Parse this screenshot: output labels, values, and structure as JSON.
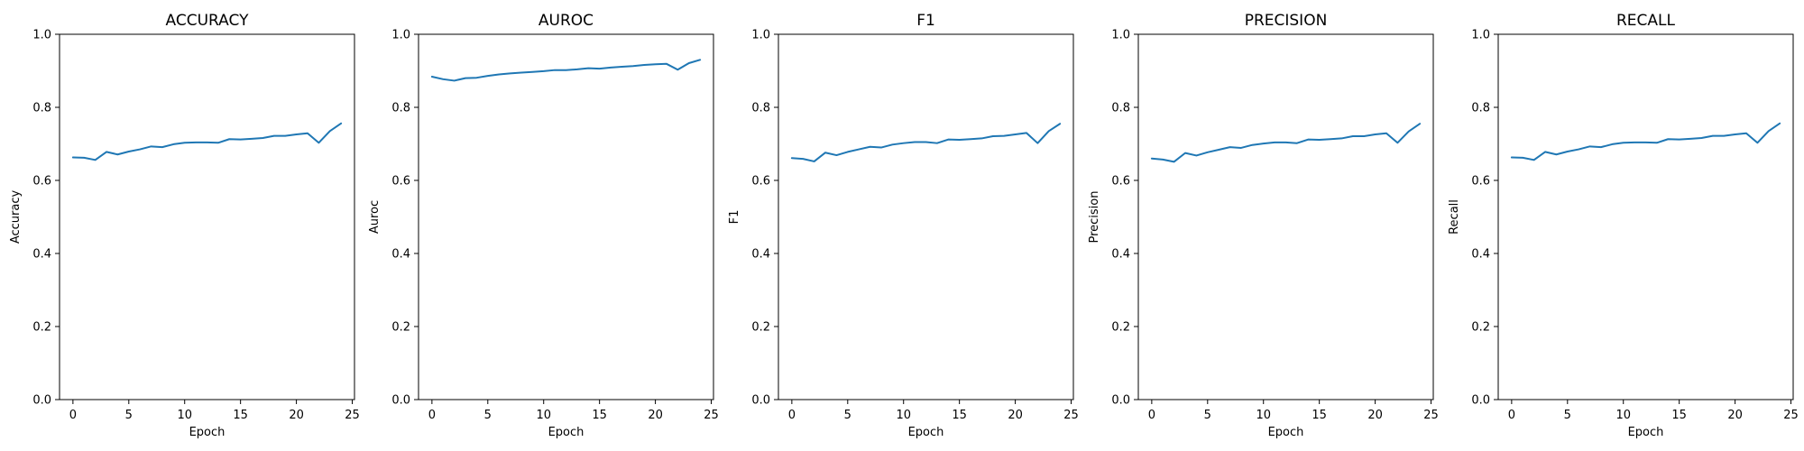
{
  "chart_data": [
    {
      "type": "line",
      "title": "ACCURACY",
      "xlabel": "Epoch",
      "ylabel": "Accuracy",
      "xlim": [
        -1.2,
        25.2
      ],
      "ylim": [
        0,
        1
      ],
      "x_ticks": [
        0,
        5,
        10,
        15,
        20,
        25
      ],
      "y_ticks": [
        "0.0",
        "0.2",
        "0.4",
        "0.6",
        "0.8",
        "1.0"
      ],
      "x": [
        0,
        1,
        2,
        3,
        4,
        5,
        6,
        7,
        8,
        9,
        10,
        11,
        12,
        13,
        14,
        15,
        16,
        17,
        18,
        19,
        20,
        21,
        22,
        23,
        24
      ],
      "series": [
        {
          "color": "#1f77b4",
          "values": [
            0.663,
            0.662,
            0.656,
            0.678,
            0.671,
            0.679,
            0.685,
            0.693,
            0.691,
            0.699,
            0.703,
            0.704,
            0.704,
            0.703,
            0.713,
            0.712,
            0.714,
            0.716,
            0.722,
            0.722,
            0.726,
            0.729,
            0.703,
            0.735,
            0.756
          ]
        }
      ],
      "grid": false
    },
    {
      "type": "line",
      "title": "AUROC",
      "xlabel": "Epoch",
      "ylabel": "Auroc",
      "xlim": [
        -1.2,
        25.2
      ],
      "ylim": [
        0,
        1
      ],
      "x_ticks": [
        0,
        5,
        10,
        15,
        20,
        25
      ],
      "y_ticks": [
        "0.0",
        "0.2",
        "0.4",
        "0.6",
        "0.8",
        "1.0"
      ],
      "x": [
        0,
        1,
        2,
        3,
        4,
        5,
        6,
        7,
        8,
        9,
        10,
        11,
        12,
        13,
        14,
        15,
        16,
        17,
        18,
        19,
        20,
        21,
        22,
        23,
        24
      ],
      "series": [
        {
          "color": "#1f77b4",
          "values": [
            0.884,
            0.877,
            0.873,
            0.88,
            0.881,
            0.886,
            0.89,
            0.893,
            0.895,
            0.897,
            0.899,
            0.902,
            0.902,
            0.904,
            0.907,
            0.906,
            0.909,
            0.911,
            0.913,
            0.916,
            0.918,
            0.919,
            0.903,
            0.921,
            0.93
          ]
        }
      ],
      "grid": false
    },
    {
      "type": "line",
      "title": "F1",
      "xlabel": "Epoch",
      "ylabel": "F1",
      "xlim": [
        -1.2,
        25.2
      ],
      "ylim": [
        0,
        1
      ],
      "x_ticks": [
        0,
        5,
        10,
        15,
        20,
        25
      ],
      "y_ticks": [
        "0.0",
        "0.2",
        "0.4",
        "0.6",
        "0.8",
        "1.0"
      ],
      "x": [
        0,
        1,
        2,
        3,
        4,
        5,
        6,
        7,
        8,
        9,
        10,
        11,
        12,
        13,
        14,
        15,
        16,
        17,
        18,
        19,
        20,
        21,
        22,
        23,
        24
      ],
      "series": [
        {
          "color": "#1f77b4",
          "values": [
            0.661,
            0.659,
            0.652,
            0.676,
            0.669,
            0.678,
            0.685,
            0.692,
            0.69,
            0.698,
            0.702,
            0.705,
            0.705,
            0.702,
            0.712,
            0.711,
            0.713,
            0.715,
            0.721,
            0.722,
            0.726,
            0.73,
            0.702,
            0.735,
            0.755
          ]
        }
      ],
      "grid": false
    },
    {
      "type": "line",
      "title": "PRECISION",
      "xlabel": "Epoch",
      "ylabel": "Precision",
      "xlim": [
        -1.2,
        25.2
      ],
      "ylim": [
        0,
        1
      ],
      "x_ticks": [
        0,
        5,
        10,
        15,
        20,
        25
      ],
      "y_ticks": [
        "0.0",
        "0.2",
        "0.4",
        "0.6",
        "0.8",
        "1.0"
      ],
      "x": [
        0,
        1,
        2,
        3,
        4,
        5,
        6,
        7,
        8,
        9,
        10,
        11,
        12,
        13,
        14,
        15,
        16,
        17,
        18,
        19,
        20,
        21,
        22,
        23,
        24
      ],
      "series": [
        {
          "color": "#1f77b4",
          "values": [
            0.66,
            0.657,
            0.651,
            0.675,
            0.668,
            0.677,
            0.684,
            0.691,
            0.689,
            0.697,
            0.701,
            0.704,
            0.704,
            0.702,
            0.712,
            0.711,
            0.713,
            0.715,
            0.721,
            0.721,
            0.726,
            0.729,
            0.703,
            0.734,
            0.755
          ]
        }
      ],
      "grid": false
    },
    {
      "type": "line",
      "title": "RECALL",
      "xlabel": "Epoch",
      "ylabel": "Recall",
      "xlim": [
        -1.2,
        25.2
      ],
      "ylim": [
        0,
        1
      ],
      "x_ticks": [
        0,
        5,
        10,
        15,
        20,
        25
      ],
      "y_ticks": [
        "0.0",
        "0.2",
        "0.4",
        "0.6",
        "0.8",
        "1.0"
      ],
      "x": [
        0,
        1,
        2,
        3,
        4,
        5,
        6,
        7,
        8,
        9,
        10,
        11,
        12,
        13,
        14,
        15,
        16,
        17,
        18,
        19,
        20,
        21,
        22,
        23,
        24
      ],
      "series": [
        {
          "color": "#1f77b4",
          "values": [
            0.663,
            0.662,
            0.656,
            0.678,
            0.671,
            0.679,
            0.685,
            0.693,
            0.691,
            0.699,
            0.703,
            0.704,
            0.704,
            0.703,
            0.713,
            0.712,
            0.714,
            0.716,
            0.722,
            0.722,
            0.726,
            0.729,
            0.703,
            0.735,
            0.756
          ]
        }
      ],
      "grid": false
    }
  ]
}
